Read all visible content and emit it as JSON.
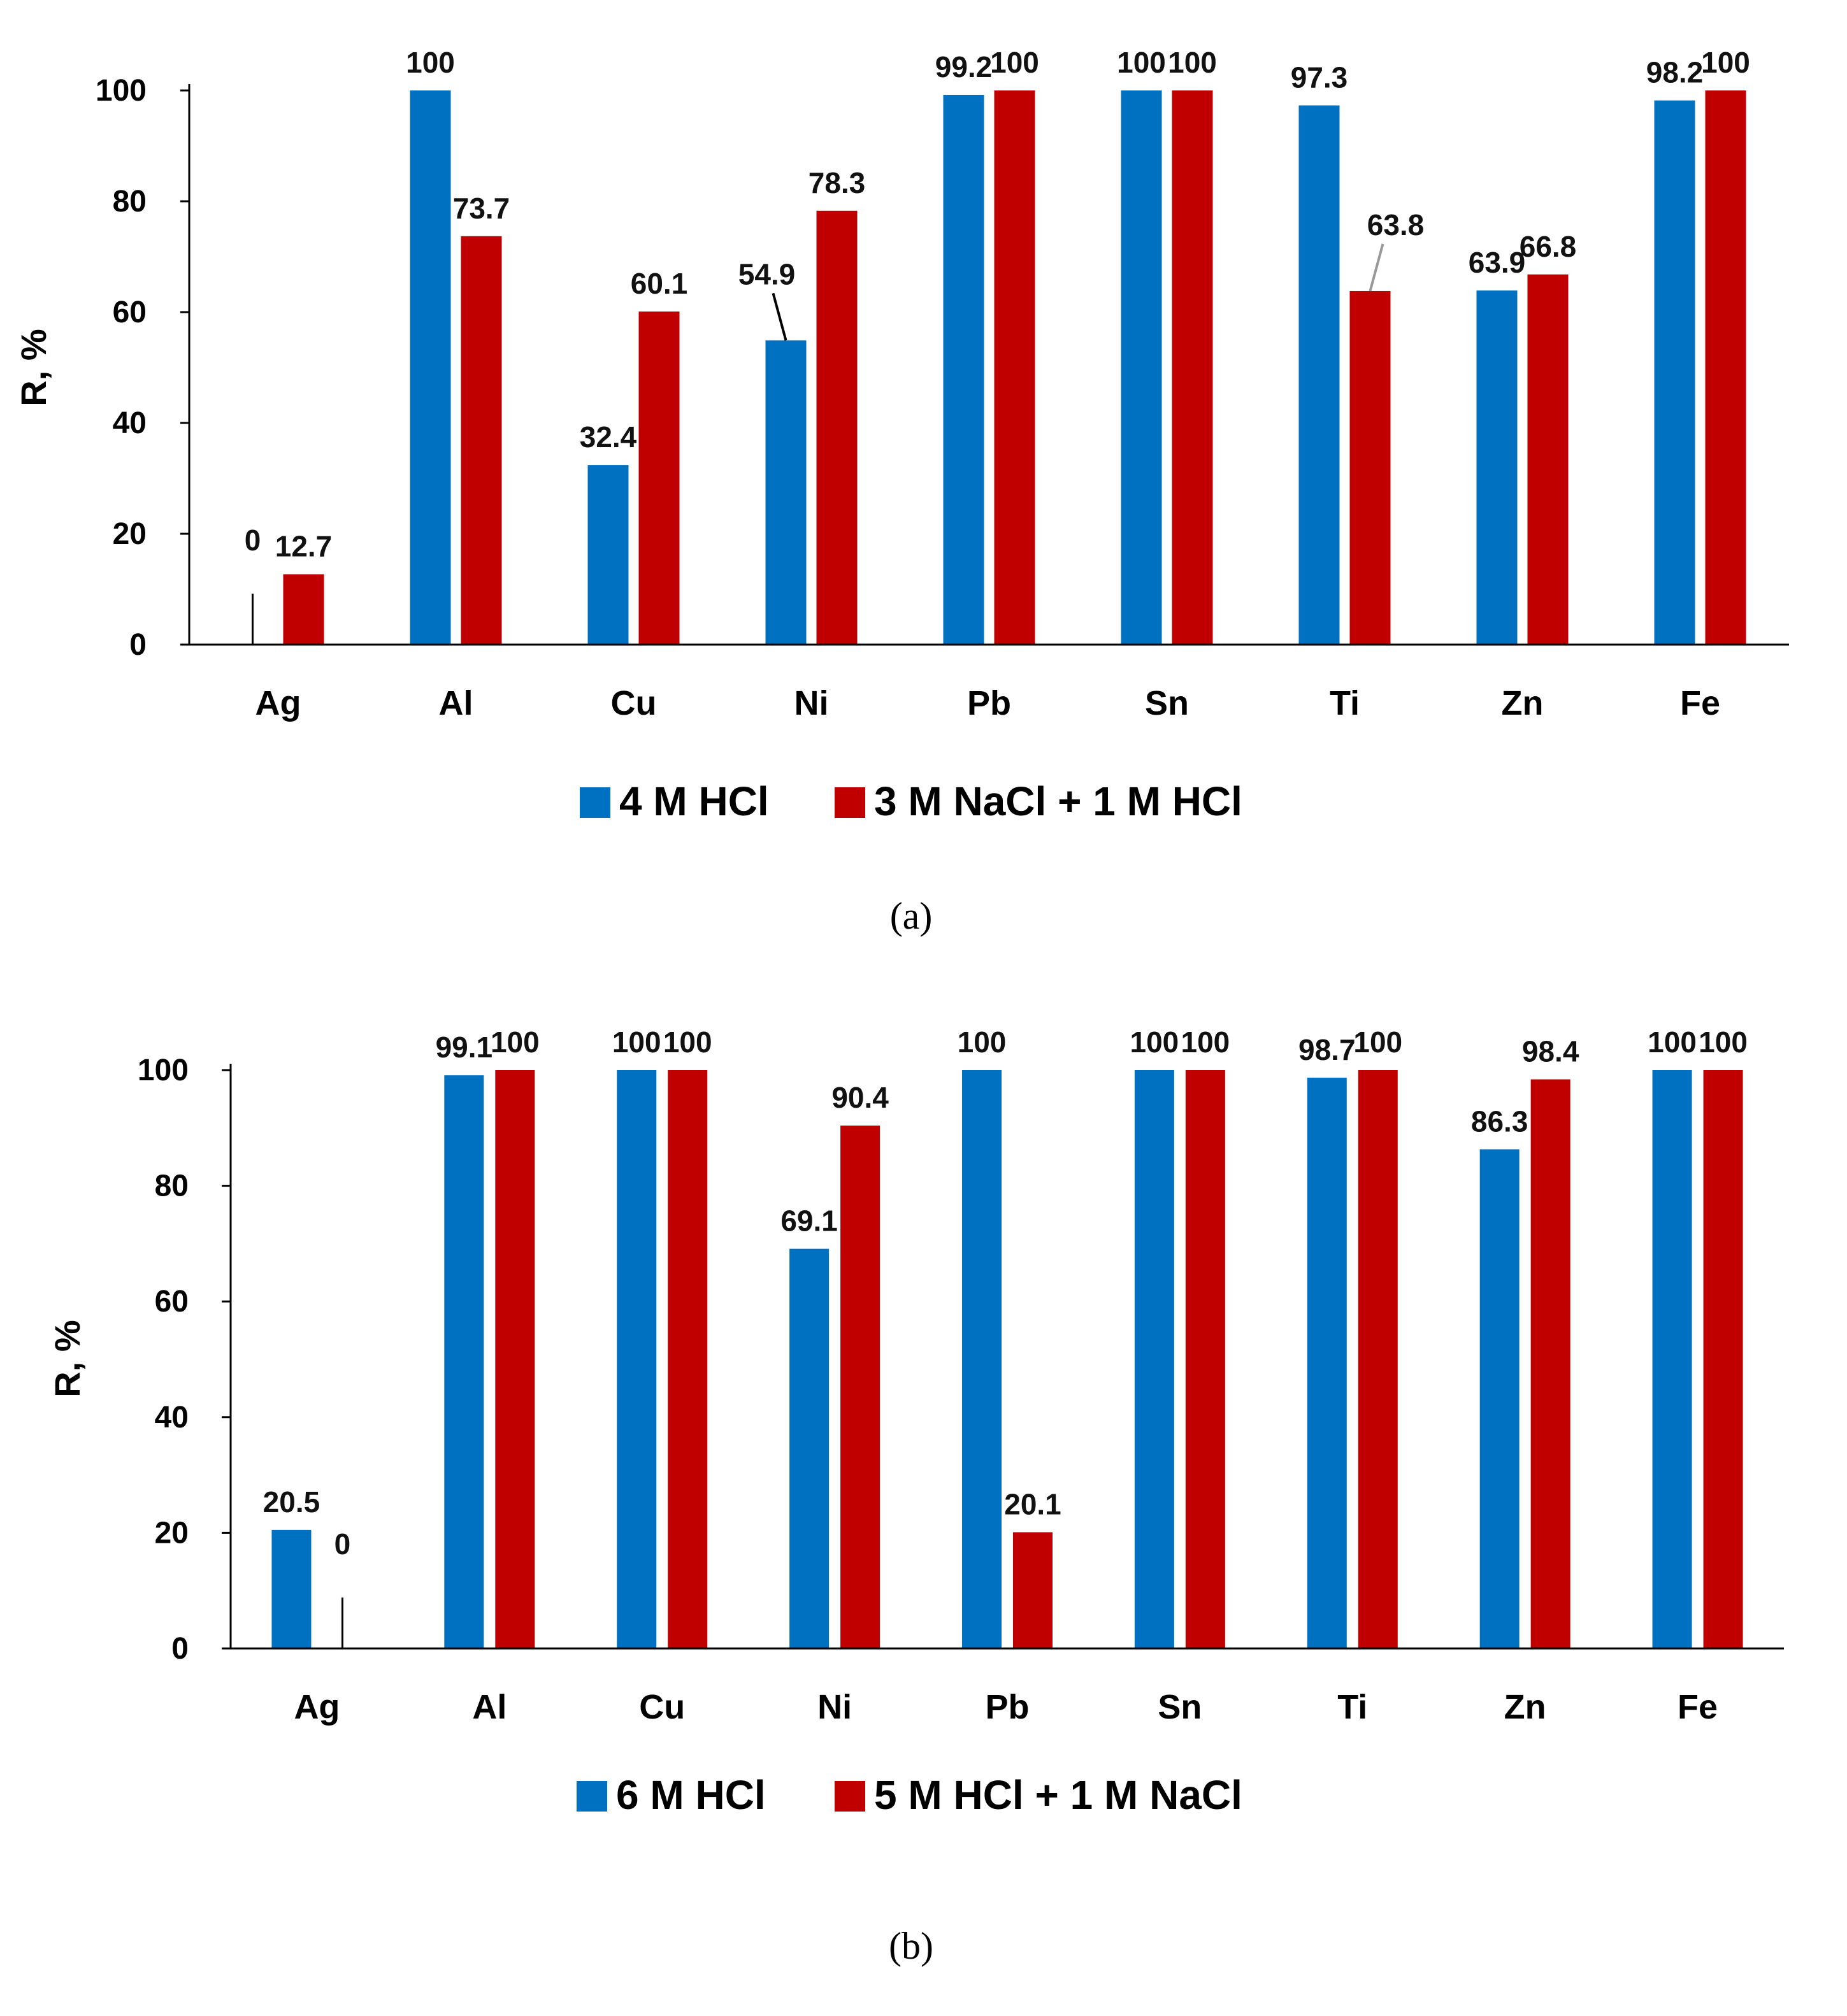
{
  "chart_data": [
    {
      "type": "bar",
      "panel_label": "(a)",
      "ylabel": "R, %",
      "ylim": [
        0,
        100
      ],
      "yticks": [
        "0",
        "20",
        "40",
        "60",
        "80",
        "100"
      ],
      "categories": [
        "Ag",
        "Al",
        "Cu",
        "Ni",
        "Pb",
        "Sn",
        "Ti",
        "Zn",
        "Fe"
      ],
      "series": [
        {
          "name": "4 M HCl",
          "color": "#0070C0",
          "values": [
            0,
            100,
            32.4,
            54.9,
            99.2,
            100,
            97.3,
            63.9,
            98.2
          ],
          "labels": [
            "0",
            "100",
            "32.4",
            "54.9",
            "99.2",
            "100",
            "97.3",
            "63.9",
            "98.2"
          ]
        },
        {
          "name": "3 M NaCl + 1 M HCl",
          "color": "#C00000",
          "values": [
            12.7,
            73.7,
            60.1,
            78.3,
            100,
            100,
            63.8,
            66.8,
            100
          ],
          "labels": [
            "12.7",
            "73.7",
            "60.1",
            "78.3",
            "100",
            "100",
            "63.8",
            "66.8",
            "100"
          ]
        }
      ],
      "legend": "bottom"
    },
    {
      "type": "bar",
      "panel_label": "(b)",
      "ylabel": "R, %",
      "ylim": [
        0,
        100
      ],
      "yticks": [
        "0",
        "20",
        "40",
        "60",
        "80",
        "100"
      ],
      "categories": [
        "Ag",
        "Al",
        "Cu",
        "Ni",
        "Pb",
        "Sn",
        "Ti",
        "Zn",
        "Fe"
      ],
      "series": [
        {
          "name": "6 M HCl",
          "color": "#0070C0",
          "values": [
            20.5,
            99.1,
            100,
            69.1,
            100,
            100,
            98.7,
            86.3,
            100
          ],
          "labels": [
            "20.5",
            "99.1",
            "100",
            "69.1",
            "100",
            "100",
            "98.7",
            "86.3",
            "100"
          ]
        },
        {
          "name": "5 M HCl + 1 M NaCl",
          "color": "#C00000",
          "values": [
            0,
            100,
            100,
            90.4,
            20.1,
            100,
            100,
            98.4,
            100
          ],
          "labels": [
            "0",
            "100",
            "100",
            "90.4",
            "20.1",
            "100",
            "100",
            "98.4",
            "100"
          ]
        }
      ],
      "legend": "bottom"
    }
  ]
}
